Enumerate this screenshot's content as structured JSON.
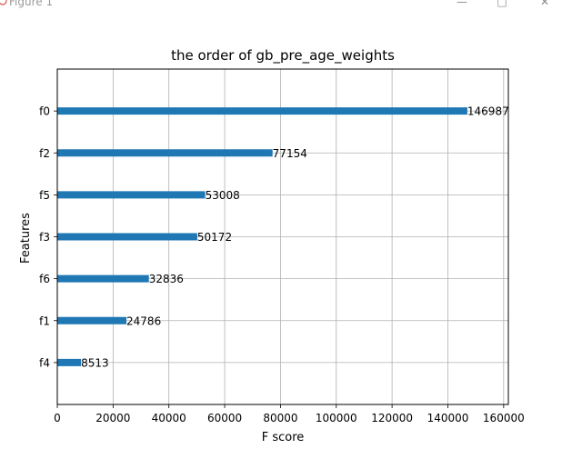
{
  "window": {
    "title": "Figure 1",
    "icons": {
      "app": "figure-app-icon",
      "minimize": "minimize-icon",
      "maximize": "maximize-icon",
      "close": "close-icon"
    }
  },
  "chart_data": {
    "type": "bar",
    "orientation": "horizontal",
    "title": "the order of gb_pre_age_weights",
    "xlabel": "F score",
    "ylabel": "Features",
    "categories": [
      "f4",
      "f1",
      "f6",
      "f3",
      "f5",
      "f2",
      "f0"
    ],
    "values": [
      8513,
      24786,
      32836,
      50172,
      53008,
      77154,
      146987
    ],
    "data_labels": [
      "8513",
      "24786",
      "32836",
      "50172",
      "53008",
      "77154",
      "146987"
    ],
    "xlim": [
      0,
      161685
    ],
    "x_ticks": [
      0,
      20000,
      40000,
      60000,
      80000,
      100000,
      120000,
      140000,
      160000
    ],
    "x_tick_labels": [
      "0",
      "20000",
      "40000",
      "60000",
      "80000",
      "100000",
      "120000",
      "140000",
      "160000"
    ],
    "grid": true,
    "bar_color": "#1f77b4"
  }
}
